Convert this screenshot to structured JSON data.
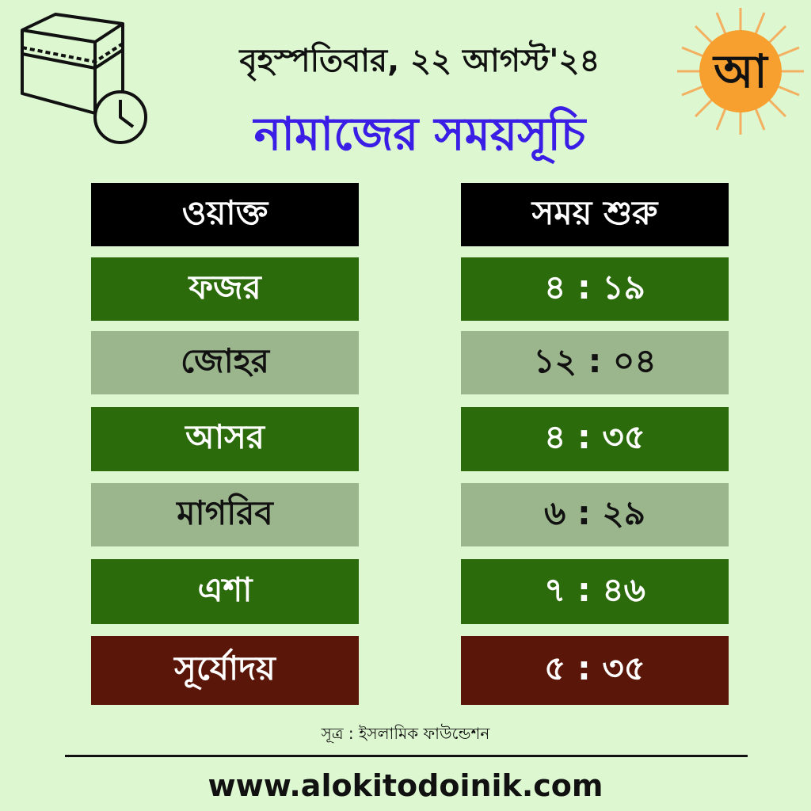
{
  "header": {
    "date": "বৃহস্পতিবার, ২২  আগস্ট'২৪",
    "title": "নামাজের সময়সূচি",
    "logo_text": "আ"
  },
  "colors": {
    "background": "#ddf8d0",
    "title": "#3b1ee6",
    "row_dark": "#2b6b0b",
    "row_light": "#9bb58c",
    "sunrise": "#5a1608",
    "logo_sun": "#f7a030"
  },
  "table": {
    "headers": [
      "ওয়াক্ত",
      "সময় শুরু"
    ],
    "rows": [
      {
        "name": "ফজর",
        "time": "৪ : ১৯"
      },
      {
        "name": "জোহর",
        "time": "১২ : ০৪"
      },
      {
        "name": "আসর",
        "time": "৪ : ৩৫"
      },
      {
        "name": "মাগরিব",
        "time": "৬ : ২৯"
      },
      {
        "name": "এশা",
        "time": "৭ : ৪৬"
      },
      {
        "name": "সূর্যোদয়",
        "time": "৫ : ৩৫"
      }
    ]
  },
  "footer": {
    "source": "সূত্র : ইসলামিক ফাউন্ডেশন",
    "url": "www.alokitodoinik.com"
  }
}
